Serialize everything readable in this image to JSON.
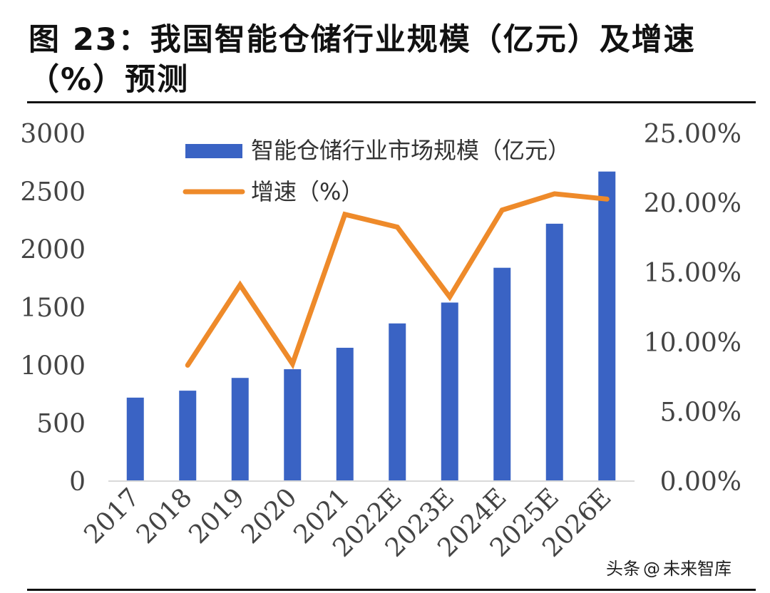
{
  "title": "图 23：我国智能仓储行业规模（亿元）及增速（%）预测",
  "watermark": {
    "prefix": "头条",
    "at": "@",
    "name": "未来智库"
  },
  "chart_data": {
    "type": "bar+line",
    "title": "",
    "categories": [
      "2017",
      "2018",
      "2019",
      "2020",
      "2021",
      "2022E",
      "2023E",
      "2024E",
      "2025E",
      "2026E"
    ],
    "series": [
      {
        "name": "智能仓储行业市场规模（亿元）",
        "type": "bar",
        "axis": "left",
        "color": "#3a63c4",
        "values": [
          720,
          780,
          890,
          965,
          1150,
          1360,
          1540,
          1840,
          2220,
          2670
        ]
      },
      {
        "name": "增速（%）",
        "type": "line",
        "axis": "right",
        "color": "#ee8a2a",
        "values": [
          null,
          8.33,
          14.1,
          8.43,
          19.17,
          18.26,
          13.24,
          19.48,
          20.65,
          20.27
        ]
      }
    ],
    "y_left": {
      "min": 0,
      "max": 3000,
      "ticks": [
        "0",
        "500",
        "1000",
        "1500",
        "2000",
        "2500",
        "3000"
      ]
    },
    "y_right": {
      "min": 0,
      "max": 25,
      "ticks": [
        "0.00%",
        "5.00%",
        "10.00%",
        "15.00%",
        "20.00%",
        "25.00%"
      ]
    },
    "grid": false,
    "legend": "top-left-inside"
  }
}
